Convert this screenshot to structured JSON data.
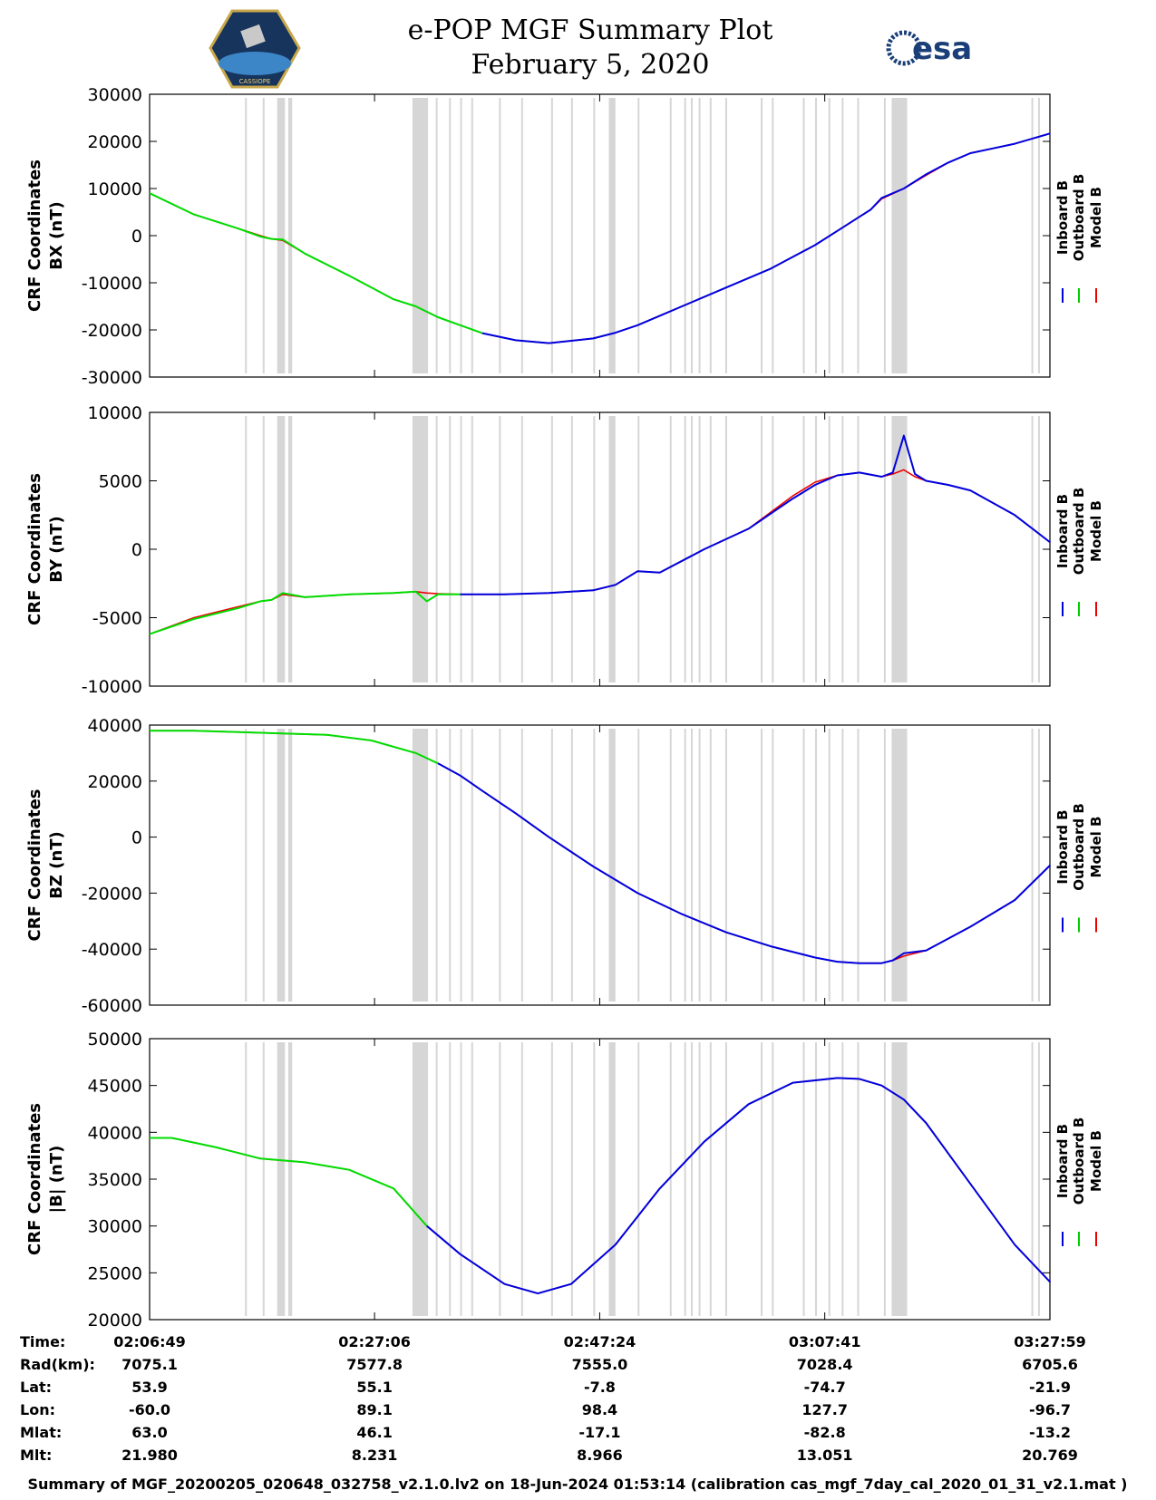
{
  "header": {
    "title": "e-POP MGF Summary Plot",
    "date": "February 5, 2020",
    "logo_left": "CASSIOPE",
    "logo_right": "esa"
  },
  "legend": {
    "entries": [
      {
        "name": "Inboard B",
        "color": "#0000dd"
      },
      {
        "name": "Outboard B",
        "color": "#00cc00"
      },
      {
        "name": "Model B",
        "color": "#ee0000"
      }
    ]
  },
  "colors": {
    "inboard": "#0000dd",
    "outboard": "#00dd00",
    "model": "#ee0000",
    "gap": "#d6d6d6"
  },
  "chart_data": [
    {
      "type": "line",
      "ylabel_line1": "CRF Coordinates",
      "ylabel_line2": "BX (nT)",
      "ylim": [
        -30000,
        30000
      ],
      "yticks": [
        -30000,
        -20000,
        -10000,
        0,
        10000,
        20000,
        30000
      ],
      "ytick_labels": [
        "-30000",
        "-20000",
        "-10000",
        "0",
        "10000",
        "20000",
        "30000"
      ],
      "x_minutes": [
        0,
        4,
        8,
        10,
        11,
        12,
        14,
        18,
        20,
        22,
        24,
        26,
        28,
        30,
        33,
        36,
        40,
        42,
        44,
        46,
        48,
        50,
        52,
        54,
        56,
        58,
        60,
        62,
        64,
        65,
        66,
        68,
        70,
        72,
        74,
        76,
        78,
        81.2
      ],
      "inboard": [
        null,
        null,
        null,
        null,
        null,
        null,
        null,
        null,
        null,
        null,
        null,
        null,
        null,
        -20700,
        -22200,
        -22800,
        -21800,
        -20600,
        -19000,
        -17000,
        -15000,
        -13000,
        -11000,
        -9000,
        -7000,
        -4500,
        -2000,
        1000,
        4000,
        5500,
        8000,
        10000,
        13000,
        15500,
        17500,
        18500,
        19500,
        21700
      ],
      "outboard": [
        9000,
        4500,
        1500,
        -200,
        -700,
        -800,
        -3800,
        -8500,
        -11000,
        -13500,
        -15000,
        -17300,
        -19000,
        -20700,
        null,
        null,
        null,
        null,
        null,
        null,
        null,
        null,
        null,
        null,
        null,
        null,
        null,
        null,
        null,
        null,
        null,
        null,
        null,
        null,
        null,
        null,
        null,
        null
      ],
      "model": [
        9000,
        4500,
        1500,
        0,
        -700,
        -1000,
        -3800,
        -8500,
        -11000,
        -13500,
        -15000,
        -17300,
        -19000,
        -20700,
        -22200,
        -22800,
        -21800,
        -20600,
        -19000,
        -17000,
        -15000,
        -13000,
        -11000,
        -9000,
        -7000,
        -4500,
        -2000,
        1000,
        4000,
        5500,
        7800,
        10000,
        12800,
        15500,
        17500,
        18500,
        19500,
        21700
      ]
    },
    {
      "type": "line",
      "ylabel_line1": "CRF Coordinates",
      "ylabel_line2": "BY (nT)",
      "ylim": [
        -10000,
        10000
      ],
      "yticks": [
        -10000,
        -5000,
        0,
        5000,
        10000
      ],
      "ytick_labels": [
        "-10000",
        "-5000",
        "0",
        "5000",
        "10000"
      ],
      "x_minutes": [
        0,
        4,
        8,
        10,
        11,
        12,
        14,
        18,
        22,
        24,
        25,
        26,
        28,
        32,
        36,
        40,
        42,
        44,
        46,
        50,
        54,
        56,
        58,
        60,
        62,
        64,
        66,
        67,
        68,
        69,
        70,
        72,
        74,
        78,
        81.2
      ],
      "inboard": [
        null,
        null,
        null,
        null,
        null,
        null,
        null,
        null,
        null,
        null,
        null,
        null,
        -3300,
        -3300,
        -3200,
        -3000,
        -2600,
        -1600,
        -1700,
        0,
        1500,
        2600,
        3700,
        4700,
        5400,
        5600,
        5300,
        5600,
        8300,
        5500,
        5000,
        4700,
        4300,
        2500,
        500
      ],
      "outboard": [
        -6200,
        -5100,
        -4300,
        -3800,
        -3700,
        -3200,
        -3500,
        -3300,
        -3200,
        -3100,
        -3800,
        -3300,
        -3300,
        null,
        null,
        null,
        null,
        null,
        null,
        null,
        null,
        null,
        null,
        null,
        null,
        null,
        null,
        null,
        null,
        null,
        null,
        null,
        null,
        null,
        null
      ],
      "model": [
        -6200,
        -5000,
        -4200,
        -3800,
        -3700,
        -3300,
        -3500,
        -3300,
        -3200,
        -3100,
        -3200,
        -3250,
        -3300,
        -3300,
        -3200,
        -3000,
        -2600,
        -1600,
        -1700,
        0,
        1500,
        2700,
        3900,
        4900,
        5400,
        5600,
        5300,
        5500,
        5800,
        5300,
        5000,
        4700,
        4300,
        2500,
        500
      ]
    },
    {
      "type": "line",
      "ylabel_line1": "CRF Coordinates",
      "ylabel_line2": "BZ (nT)",
      "ylim": [
        -60000,
        40000
      ],
      "yticks": [
        -60000,
        -40000,
        -20000,
        0,
        20000,
        40000
      ],
      "ytick_labels": [
        "-60000",
        "-40000",
        "-20000",
        "0",
        "20000",
        "40000"
      ],
      "x_minutes": [
        0,
        4,
        8,
        12,
        16,
        20,
        24,
        26,
        28,
        30,
        33,
        36,
        40,
        44,
        48,
        52,
        56,
        60,
        62,
        64,
        66,
        67,
        68,
        70,
        74,
        78,
        81.2
      ],
      "inboard": [
        null,
        null,
        null,
        null,
        null,
        null,
        null,
        26300,
        22000,
        16500,
        8500,
        0,
        -10500,
        -20000,
        -27500,
        -34000,
        -39000,
        -43000,
        -44500,
        -45000,
        -45000,
        -44000,
        -41500,
        -40500,
        -32000,
        -22500,
        -10000
      ],
      "outboard": [
        38000,
        38000,
        37500,
        37000,
        36500,
        34500,
        30000,
        26300,
        null,
        null,
        null,
        null,
        null,
        null,
        null,
        null,
        null,
        null,
        null,
        null,
        null,
        null,
        null,
        null,
        null,
        null,
        null
      ],
      "model": [
        38000,
        38000,
        37500,
        37000,
        36500,
        34500,
        30000,
        26300,
        22000,
        16500,
        8500,
        0,
        -10500,
        -20000,
        -27500,
        -34000,
        -39000,
        -43000,
        -44500,
        -45000,
        -45000,
        -44000,
        -42500,
        -40500,
        -32000,
        -22500,
        -10000
      ]
    },
    {
      "type": "line",
      "ylabel_line1": "CRF Coordinates",
      "ylabel_line2": "|B| (nT)",
      "ylim": [
        20000,
        50000
      ],
      "yticks": [
        20000,
        25000,
        30000,
        35000,
        40000,
        45000,
        50000
      ],
      "ytick_labels": [
        "20000",
        "25000",
        "30000",
        "35000",
        "40000",
        "45000",
        "50000"
      ],
      "x_minutes": [
        0,
        2,
        6,
        10,
        14,
        18,
        22,
        25,
        28,
        32,
        35,
        38,
        42,
        46,
        50,
        54,
        58,
        62,
        64,
        66,
        68,
        70,
        74,
        78,
        81.2
      ],
      "inboard": [
        null,
        null,
        null,
        null,
        null,
        null,
        null,
        30000,
        27000,
        23800,
        22800,
        23800,
        28000,
        34000,
        39000,
        43000,
        45300,
        45800,
        45700,
        45000,
        43500,
        41000,
        34500,
        28000,
        24000
      ],
      "outboard": [
        39400,
        39400,
        38400,
        37200,
        36800,
        36000,
        34000,
        30000,
        null,
        null,
        null,
        null,
        null,
        null,
        null,
        null,
        null,
        null,
        null,
        null,
        null,
        null,
        null,
        null,
        null
      ],
      "model": [
        39400,
        39400,
        38400,
        37200,
        36800,
        36000,
        34000,
        30000,
        27000,
        23800,
        22800,
        23800,
        28000,
        34000,
        39000,
        43000,
        45300,
        45800,
        45700,
        45000,
        43500,
        41000,
        34500,
        28000,
        24000
      ]
    }
  ],
  "x_axis": {
    "xlim_minutes": [
      0,
      81.17
    ],
    "tick_minutes": [
      0,
      20.28,
      40.58,
      60.87,
      81.17
    ]
  },
  "data_gaps_minutes": [
    [
      8.6,
      8.75
    ],
    [
      10.2,
      10.3
    ],
    [
      11.5,
      12.2
    ],
    [
      12.5,
      12.85
    ],
    [
      23.7,
      25.1
    ],
    [
      25.8,
      25.9
    ],
    [
      27.0,
      27.1
    ],
    [
      28.0,
      28.1
    ],
    [
      29.0,
      29.1
    ],
    [
      31.5,
      31.6
    ],
    [
      33.5,
      33.6
    ],
    [
      36.2,
      36.3
    ],
    [
      38.0,
      38.1
    ],
    [
      40.0,
      40.1
    ],
    [
      41.4,
      42.0
    ],
    [
      44.0,
      44.1
    ],
    [
      46.9,
      47.0
    ],
    [
      48.2,
      48.3
    ],
    [
      48.8,
      48.9
    ],
    [
      49.5,
      49.6
    ],
    [
      50.5,
      50.6
    ],
    [
      51.9,
      52.0
    ],
    [
      55.1,
      55.2
    ],
    [
      56.1,
      56.2
    ],
    [
      58.9,
      59.0
    ],
    [
      60.0,
      60.1
    ],
    [
      61.2,
      61.3
    ],
    [
      62.4,
      62.5
    ],
    [
      63.8,
      63.9
    ],
    [
      66.2,
      66.3
    ],
    [
      66.9,
      68.3
    ],
    [
      79.5,
      79.6
    ],
    [
      80.1,
      80.2
    ]
  ],
  "table": {
    "rows": [
      {
        "label": "Time:",
        "values": [
          "02:06:49",
          "02:27:06",
          "02:47:24",
          "03:07:41",
          "03:27:59"
        ]
      },
      {
        "label": "Rad(km):",
        "values": [
          "7075.1",
          "7577.8",
          "7555.0",
          "7028.4",
          "6705.6"
        ]
      },
      {
        "label": "Lat:",
        "values": [
          "53.9",
          "55.1",
          "-7.8",
          "-74.7",
          "-21.9"
        ]
      },
      {
        "label": "Lon:",
        "values": [
          "-60.0",
          "89.1",
          "98.4",
          "127.7",
          "-96.7"
        ]
      },
      {
        "label": "Mlat:",
        "values": [
          "63.0",
          "46.1",
          "-17.1",
          "-82.8",
          "-13.2"
        ]
      },
      {
        "label": "Mlt:",
        "values": [
          "21.980",
          "8.231",
          "8.966",
          "13.051",
          "20.769"
        ]
      }
    ]
  },
  "footer": "Summary of MGF_20200205_020648_032758_v2.1.0.lv2 on 18-Jun-2024 01:53:14 (calibration cas_mgf_7day_cal_2020_01_31_v2.1.mat )"
}
